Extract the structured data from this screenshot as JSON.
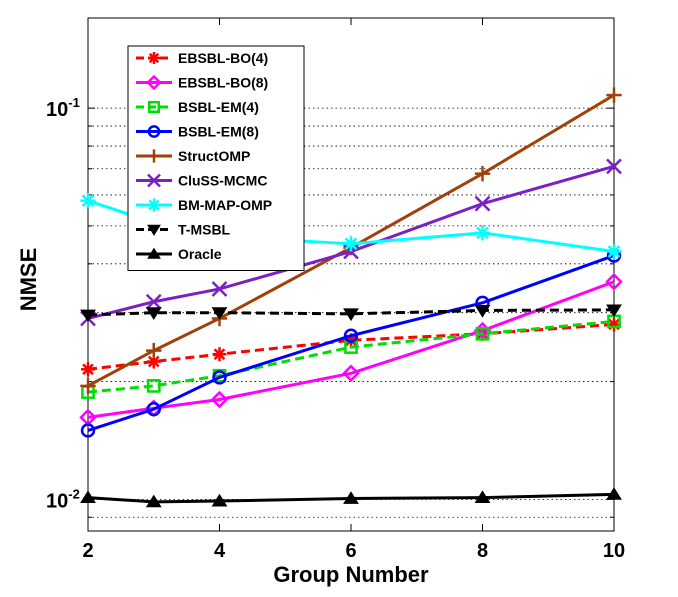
{
  "chart_data": {
    "type": "line",
    "title": "",
    "xlabel": "Group Number",
    "ylabel": "NMSE",
    "y_scale": "log",
    "x_ticks": [
      "2",
      "4",
      "6",
      "8",
      "10"
    ],
    "y_ticks": [
      {
        "value": 0.01,
        "base": "10",
        "exp": "-2"
      },
      {
        "value": 0.1,
        "base": "10",
        "exp": "-1"
      }
    ],
    "xlim": [
      2,
      10
    ],
    "ylim": [
      0.0083,
      0.17
    ],
    "grid": "y-minor dotted",
    "legend_position": "top-left",
    "x": [
      2,
      3,
      4,
      6,
      8,
      10
    ],
    "series": [
      {
        "name": "EBSBL-BO(4)",
        "color": "#ff0000",
        "dash": "dashed",
        "marker": "star",
        "values": [
          0.0215,
          0.0225,
          0.0235,
          0.0255,
          0.0265,
          0.028
        ]
      },
      {
        "name": "EBSBL-BO(8)",
        "color": "#ff00ff",
        "dash": "solid",
        "marker": "diamond",
        "values": [
          0.0162,
          0.0171,
          0.018,
          0.021,
          0.027,
          0.036
        ]
      },
      {
        "name": "BSBL-EM(4)",
        "color": "#00dd00",
        "dash": "dashed",
        "marker": "square",
        "values": [
          0.0188,
          0.0195,
          0.0207,
          0.0245,
          0.0265,
          0.0285
        ]
      },
      {
        "name": "BSBL-EM(8)",
        "color": "#0000ff",
        "dash": "solid",
        "marker": "circle",
        "values": [
          0.015,
          0.017,
          0.0205,
          0.0262,
          0.0318,
          0.042
        ]
      },
      {
        "name": "StructOMP",
        "color": "#a0410a",
        "dash": "solid",
        "marker": "plus",
        "values": [
          0.0195,
          0.024,
          0.029,
          0.044,
          0.068,
          0.108
        ]
      },
      {
        "name": "CluSS-MCMC",
        "color": "#7b20c4",
        "dash": "solid",
        "marker": "x",
        "values": [
          0.029,
          0.032,
          0.0345,
          0.043,
          0.057,
          0.071
        ]
      },
      {
        "name": "BM-MAP-OMP",
        "color": "#00ffff",
        "dash": "solid",
        "marker": "asterisk",
        "values": [
          0.058,
          0.051,
          0.047,
          0.045,
          0.048,
          0.043
        ]
      },
      {
        "name": "T-MSBL",
        "color": "#000000",
        "dash": "dashed",
        "marker": "triangle-down",
        "values": [
          0.0296,
          0.03,
          0.03,
          0.0298,
          0.0304,
          0.0305
        ]
      },
      {
        "name": "Oracle",
        "color": "#000000",
        "dash": "solid",
        "marker": "triangle-up",
        "values": [
          0.0101,
          0.00985,
          0.0099,
          0.01005,
          0.0101,
          0.0103
        ]
      }
    ]
  }
}
